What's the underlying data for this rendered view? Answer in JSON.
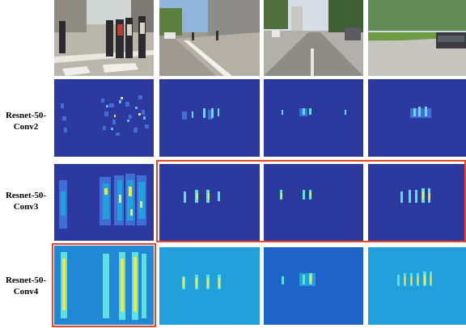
{
  "rows": [
    {
      "label_line1": "Resnet-50-",
      "label_line2": "Conv2"
    },
    {
      "label_line1": "Resnet-50-",
      "label_line2": "Conv3"
    },
    {
      "label_line1": "Resnet-50-",
      "label_line2": "Conv4"
    }
  ],
  "colors": {
    "heatmap_background_dark": "#2c3aa0",
    "heatmap_background_mid": "#1f63c8",
    "heatmap_background_light": "#22a0dc",
    "activation_yellow": "#f6e63c",
    "activation_cyan": "#5fe0e0",
    "highlight_box": "#e8462c"
  },
  "scenes": [
    {
      "name": "crosswalk-pedestrians"
    },
    {
      "name": "sidewalk-street"
    },
    {
      "name": "street-ahead"
    },
    {
      "name": "street-with-car"
    }
  ]
}
